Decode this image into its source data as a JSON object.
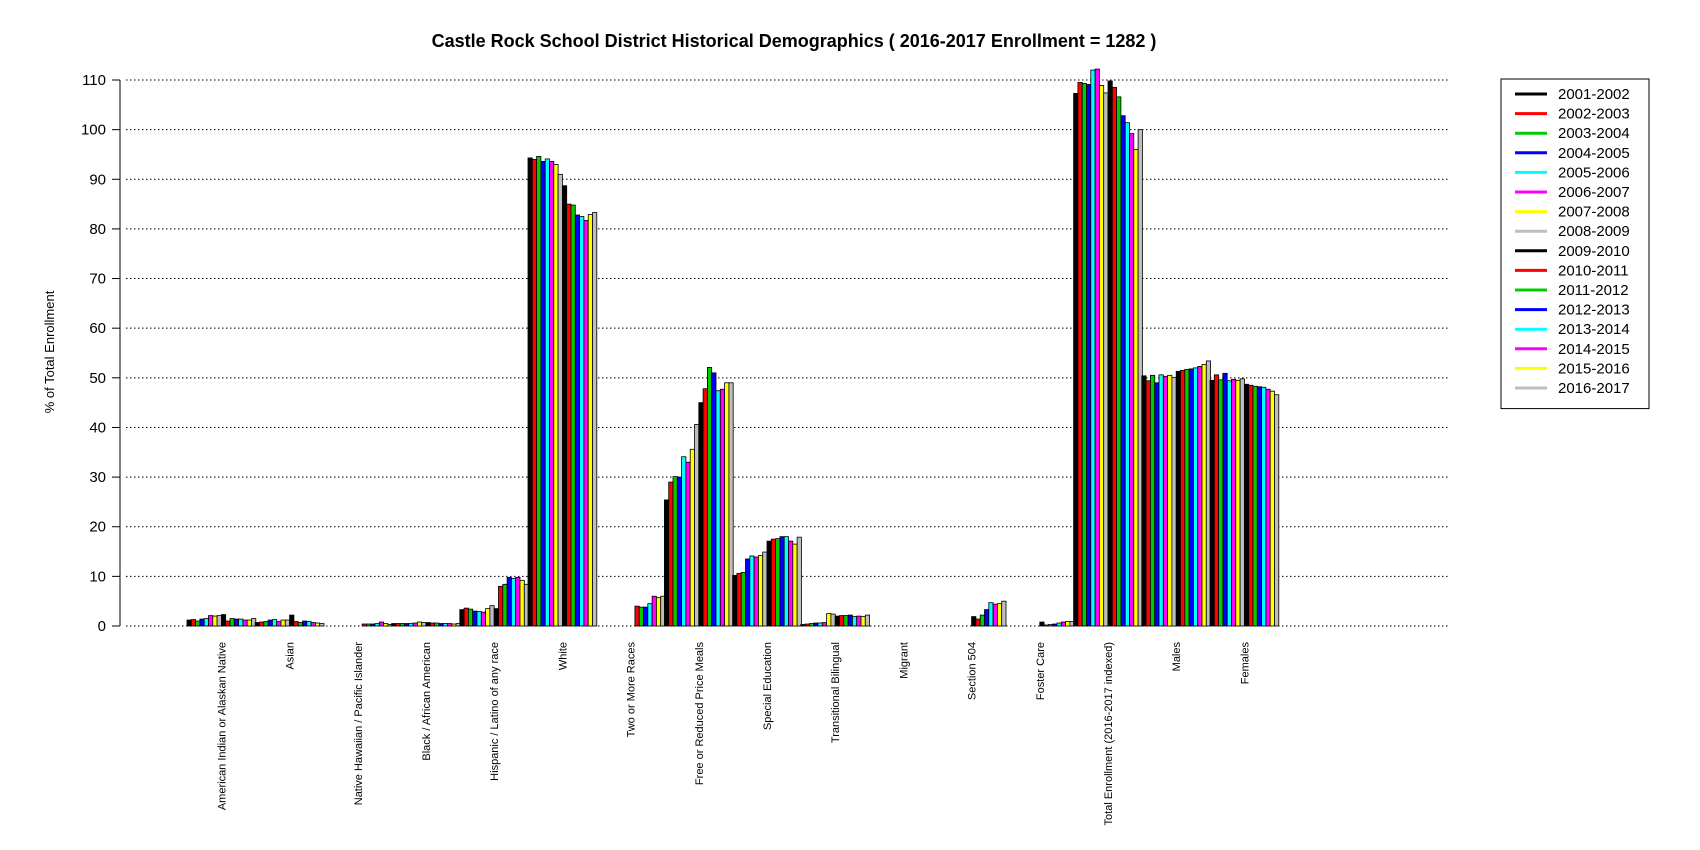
{
  "chart_data": {
    "type": "bar",
    "title": "Castle Rock School District Historical Demographics  ( 2016-2017 Enrollment =  1282 )",
    "xlabel": "",
    "ylabel": "% of Total Enrollment",
    "ylim": [
      0,
      110
    ],
    "yticks": [
      0,
      10,
      20,
      30,
      40,
      50,
      60,
      70,
      80,
      90,
      100,
      110
    ],
    "grid": "horizontal dotted",
    "legend_position": "right",
    "categories": [
      "American Indian or Alaskan Native",
      "Asian",
      "Native Hawaiian / Pacific Islander",
      "Black / African American",
      "Hispanic / Latino of any race",
      "White",
      "Two or More Races",
      "Free or Reduced Price Meals",
      "Special Education",
      "Transitional Bilingual",
      "Migrant",
      "Section 504",
      "Foster Care",
      "Total Enrollment (2016-2017 indexed)",
      "Males",
      "Females"
    ],
    "series": [
      {
        "name": "2001-2002",
        "color": "#000000",
        "values": [
          1.2,
          0.7,
          0,
          0.5,
          3.3,
          94.3,
          0,
          25.4,
          10.2,
          0.3,
          0,
          0,
          0,
          107.3,
          50.4,
          49.5
        ]
      },
      {
        "name": "2002-2003",
        "color": "#ff0000",
        "values": [
          1.3,
          0.8,
          0,
          0.5,
          3.6,
          94.0,
          0,
          29.0,
          10.6,
          0.4,
          0,
          0,
          0,
          109.5,
          49.4,
          50.6
        ]
      },
      {
        "name": "2003-2004",
        "color": "#00cc00",
        "values": [
          1.0,
          0.9,
          0,
          0.5,
          3.4,
          94.6,
          0,
          30.1,
          10.8,
          0.5,
          0,
          0,
          0,
          109.3,
          50.5,
          49.6
        ]
      },
      {
        "name": "2004-2005",
        "color": "#0000ff",
        "values": [
          1.4,
          1.2,
          0,
          0.5,
          3.0,
          93.6,
          0,
          30.0,
          13.5,
          0.6,
          0,
          0,
          0,
          109.1,
          49.0,
          50.9
        ]
      },
      {
        "name": "2005-2006",
        "color": "#00ffff",
        "values": [
          1.5,
          1.3,
          0,
          0.5,
          2.9,
          94.1,
          0,
          34.1,
          14.1,
          0.6,
          0,
          0,
          0,
          112.0,
          50.6,
          49.4
        ]
      },
      {
        "name": "2006-2007",
        "color": "#ff00ff",
        "values": [
          2.1,
          0.9,
          0,
          0.6,
          2.8,
          93.6,
          0,
          33.0,
          13.9,
          0.7,
          0,
          0,
          0,
          112.2,
          50.3,
          49.7
        ]
      },
      {
        "name": "2007-2008",
        "color": "#ffff00",
        "values": [
          2.0,
          1.2,
          0,
          0.8,
          3.5,
          93.0,
          0,
          35.6,
          14.2,
          2.5,
          0,
          0,
          0,
          108.9,
          50.5,
          49.5
        ]
      },
      {
        "name": "2008-2009",
        "color": "#bebebe",
        "values": [
          2.1,
          1.2,
          0,
          0.7,
          4.1,
          91.0,
          0,
          40.6,
          14.9,
          2.4,
          0,
          0,
          0,
          107.4,
          50.1,
          49.8
        ]
      },
      {
        "name": "2009-2010",
        "color": "#000000",
        "values": [
          2.3,
          2.2,
          0,
          0.7,
          3.5,
          88.7,
          0,
          45.0,
          17.1,
          2.0,
          0,
          1.9,
          0.8,
          109.8,
          51.3,
          48.7
        ]
      },
      {
        "name": "2010-2011",
        "color": "#ff0000",
        "values": [
          1.0,
          0.9,
          0.4,
          0.6,
          8.0,
          85.0,
          4.0,
          47.8,
          17.5,
          2.1,
          0,
          1.4,
          0.2,
          108.5,
          51.5,
          48.5
        ]
      },
      {
        "name": "2011-2012",
        "color": "#00cc00",
        "values": [
          1.5,
          0.7,
          0.4,
          0.6,
          8.4,
          84.8,
          3.8,
          52.1,
          17.6,
          2.1,
          0,
          2.2,
          0.3,
          106.6,
          51.7,
          48.3
        ]
      },
      {
        "name": "2012-2013",
        "color": "#0000ff",
        "values": [
          1.4,
          1.0,
          0.4,
          0.5,
          9.8,
          82.8,
          3.8,
          51.0,
          18.0,
          2.2,
          0,
          3.3,
          0.4,
          102.8,
          51.8,
          48.2
        ]
      },
      {
        "name": "2013-2014",
        "color": "#00ffff",
        "values": [
          1.4,
          0.9,
          0.5,
          0.5,
          9.6,
          82.5,
          4.5,
          47.4,
          18.0,
          1.9,
          0,
          4.7,
          0.6,
          101.4,
          52.0,
          48.1
        ]
      },
      {
        "name": "2014-2015",
        "color": "#ff00ff",
        "values": [
          1.2,
          0.7,
          0.8,
          0.5,
          9.8,
          81.7,
          6.0,
          47.7,
          17.1,
          2.0,
          0,
          4.4,
          0.8,
          99.2,
          52.3,
          47.7
        ]
      },
      {
        "name": "2015-2016",
        "color": "#ffff00",
        "values": [
          1.2,
          0.6,
          0.5,
          0.4,
          9.2,
          82.9,
          5.7,
          49.0,
          16.5,
          1.9,
          0,
          4.5,
          0.9,
          96.0,
          52.7,
          47.3
        ]
      },
      {
        "name": "2016-2017",
        "color": "#bebebe",
        "values": [
          1.5,
          0.5,
          0.3,
          0.5,
          8.4,
          83.3,
          6.0,
          49.0,
          17.9,
          2.2,
          0,
          5.0,
          0.9,
          100.0,
          53.4,
          46.6
        ]
      }
    ]
  }
}
